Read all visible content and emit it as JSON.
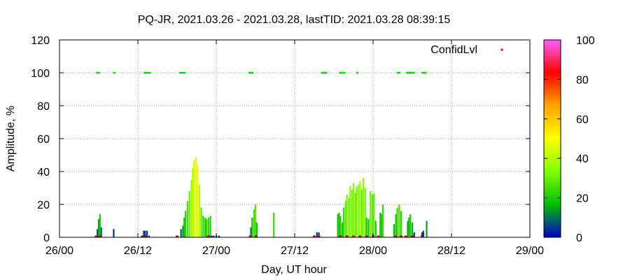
{
  "chart_data": {
    "type": "bar",
    "title": "PQ-JR, 2021.03.26 - 2021.03.28, lastTID: 2021.03.28 08:39:15",
    "xlabel": "Day, UT hour",
    "ylabel": "Amplitude, %",
    "xlim": [
      0,
      72
    ],
    "ylim": [
      0,
      120
    ],
    "x_tick_labels": [
      "26/00",
      "26/12",
      "27/00",
      "27/12",
      "28/00",
      "28/12",
      "29/00"
    ],
    "y_tick_labels": [
      "0",
      "20",
      "40",
      "60",
      "80",
      "100",
      "120"
    ],
    "grid": true,
    "legend": {
      "label": "ConfidLvl",
      "position": "top-right"
    },
    "colorbar": {
      "range": [
        0,
        100
      ],
      "tick_labels": [
        "0",
        "20",
        "40",
        "60",
        "80",
        "100"
      ],
      "colors": [
        "#0000c8",
        "#00c000",
        "#7fff00",
        "#ffff00",
        "#ffa500",
        "#ff0000",
        "#ff60ff"
      ]
    },
    "series": [
      {
        "x_hours": [
          5.8,
          6.0,
          6.2,
          6.4,
          8.3,
          12.6,
          12.9,
          13.1,
          13.4,
          13.7,
          18.6,
          18.9,
          19.1,
          19.3,
          19.6,
          19.9,
          20.2,
          20.4,
          20.6,
          20.9,
          21.1,
          21.4,
          21.7,
          22.0,
          22.3,
          22.5,
          22.8,
          23.1,
          23.3,
          23.6,
          24.0,
          24.4,
          29.3,
          29.5,
          29.8,
          30.0,
          30.2,
          32.8,
          39.1,
          39.4,
          39.7,
          42.6,
          42.8,
          43.0,
          43.3,
          43.5,
          43.8,
          44.0,
          44.3,
          44.5,
          44.8,
          45.0,
          45.3,
          45.5,
          45.8,
          46.0,
          46.3,
          46.5,
          46.8,
          47.0,
          47.3,
          47.6,
          47.9,
          48.1,
          48.4,
          48.8,
          49.1,
          49.3,
          49.5,
          51.2,
          51.5,
          51.7,
          52.0,
          52.3,
          53.3,
          53.5,
          53.7,
          54.0,
          54.3,
          55.5,
          55.7,
          56.2
        ],
        "values": [
          5,
          11,
          14,
          6,
          5,
          1,
          4,
          4,
          4,
          1,
          5,
          7,
          12,
          16,
          22,
          28,
          35,
          42,
          47,
          49,
          44,
          32,
          18,
          13,
          12,
          11,
          12,
          13,
          1,
          1,
          1,
          1,
          6,
          12,
          17,
          20,
          9,
          15,
          1,
          3,
          3,
          14,
          15,
          13,
          9,
          18,
          22,
          26,
          24,
          31,
          29,
          33,
          27,
          31,
          32,
          34,
          29,
          36,
          30,
          12,
          11,
          28,
          26,
          27,
          10,
          1,
          15,
          14,
          20,
          8,
          14,
          18,
          20,
          16,
          10,
          12,
          14,
          9,
          3,
          3,
          4,
          10
        ],
        "confid": [
          8,
          14,
          20,
          10,
          5,
          5,
          5,
          5,
          5,
          5,
          8,
          14,
          18,
          22,
          26,
          30,
          36,
          40,
          44,
          48,
          46,
          40,
          28,
          22,
          22,
          22,
          22,
          22,
          0,
          0,
          0,
          0,
          10,
          18,
          24,
          28,
          18,
          25,
          5,
          5,
          5,
          20,
          20,
          20,
          18,
          24,
          28,
          32,
          30,
          34,
          32,
          34,
          30,
          32,
          34,
          36,
          30,
          34,
          32,
          20,
          18,
          30,
          28,
          30,
          18,
          5,
          20,
          20,
          24,
          16,
          18,
          24,
          26,
          22,
          16,
          18,
          20,
          15,
          5,
          5,
          5,
          15
        ]
      },
      {
        "name": "ConfidLvl",
        "x_hours": [
          5.8,
          6.0,
          8.4,
          13.1,
          13.3,
          13.6,
          13.8,
          18.5,
          18.7,
          18.9,
          19.1,
          29.1,
          29.3,
          29.5,
          40.2,
          40.4,
          40.6,
          40.8,
          43.0,
          43.2,
          43.4,
          43.6,
          45.6,
          51.8,
          52.0,
          53.2,
          53.4,
          53.6,
          53.8,
          54.0,
          54.2,
          55.6,
          55.8,
          56.0
        ],
        "values": [
          100,
          100,
          100,
          100,
          100,
          100,
          100,
          100,
          100,
          100,
          100,
          100,
          100,
          100,
          100,
          100,
          100,
          100,
          100,
          100,
          100,
          100,
          100,
          100,
          100,
          100,
          100,
          100,
          100,
          100,
          100,
          100,
          100,
          100
        ]
      },
      {
        "x_hours": [
          5.6,
          6.2,
          12.8,
          13.2,
          18.0,
          22.8,
          29.2,
          30.1,
          39.0,
          39.7,
          43.0,
          44.0,
          45.0,
          46.0,
          47.0,
          48.0,
          48.8,
          51.5,
          52.3,
          53.0,
          54.0,
          55.5
        ],
        "values": [
          0,
          0,
          0,
          0,
          0,
          0,
          0,
          0,
          0,
          0,
          0,
          0,
          0,
          0,
          0,
          0,
          0,
          0,
          0,
          0,
          0,
          0
        ]
      }
    ]
  }
}
